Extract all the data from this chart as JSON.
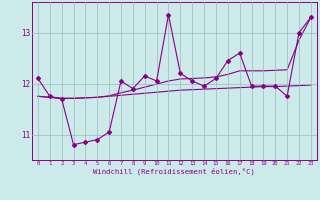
{
  "x": [
    0,
    1,
    2,
    3,
    4,
    5,
    6,
    7,
    8,
    9,
    10,
    11,
    12,
    13,
    14,
    15,
    16,
    17,
    18,
    19,
    20,
    21,
    22,
    23
  ],
  "main_line": [
    12.1,
    11.75,
    11.7,
    10.8,
    10.85,
    10.9,
    11.05,
    12.05,
    11.9,
    12.15,
    12.05,
    13.35,
    12.2,
    12.05,
    11.95,
    12.1,
    12.45,
    12.6,
    11.95,
    11.95,
    11.95,
    11.75,
    13.0,
    13.3
  ],
  "trend_line1": [
    11.75,
    11.73,
    11.71,
    11.71,
    11.72,
    11.73,
    11.75,
    11.77,
    11.79,
    11.81,
    11.83,
    11.85,
    11.87,
    11.88,
    11.89,
    11.9,
    11.91,
    11.92,
    11.93,
    11.94,
    11.94,
    11.95,
    11.96,
    11.97
  ],
  "trend_line2": [
    11.75,
    11.73,
    11.71,
    11.71,
    11.72,
    11.73,
    11.76,
    11.82,
    11.87,
    11.93,
    11.99,
    12.05,
    12.09,
    12.1,
    12.11,
    12.13,
    12.18,
    12.25,
    12.25,
    12.25,
    12.26,
    12.27,
    12.85,
    13.3
  ],
  "bg_color": "#cceaea",
  "line_color": "#880088",
  "grid_color": "#99bbbb",
  "xlabel": "Windchill (Refroidissement éolien,°C)",
  "ylim": [
    10.5,
    13.6
  ],
  "xlim": [
    -0.5,
    23.5
  ],
  "yticks": [
    11,
    12,
    13
  ],
  "xticks": [
    0,
    1,
    2,
    3,
    4,
    5,
    6,
    7,
    8,
    9,
    10,
    11,
    12,
    13,
    14,
    15,
    16,
    17,
    18,
    19,
    20,
    21,
    22,
    23
  ]
}
